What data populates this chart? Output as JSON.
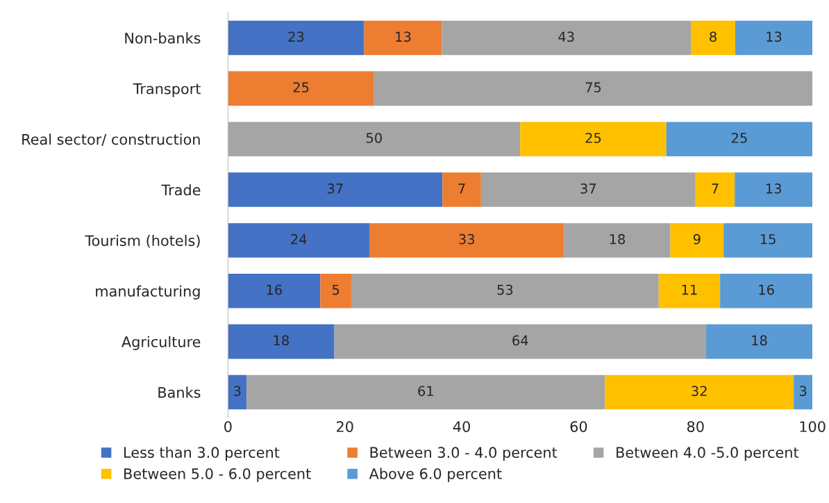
{
  "chart_data": {
    "type": "bar",
    "orientation": "horizontal",
    "stacked": true,
    "grid": false,
    "legend": "bottom",
    "categories": [
      "Non-banks",
      "Transport",
      "Real sector/ construction",
      "Trade",
      "Tourism (hotels)",
      "manufacturing",
      "Agriculture",
      "Banks"
    ],
    "xlim": [
      0,
      100
    ],
    "xticks": [
      0,
      20,
      40,
      60,
      80,
      100
    ],
    "series": [
      {
        "name": "Less than 3.0 percent",
        "color": "#4472c4",
        "values": [
          23.3,
          null,
          null,
          36.7,
          24.2,
          15.8,
          18.2,
          3.2
        ],
        "value_labels": [
          "23",
          null,
          null,
          "37",
          "24",
          "16",
          "18",
          "3"
        ]
      },
      {
        "name": "Between 3.0 - 4.0 percent",
        "color": "#ed7d31",
        "values": [
          13.3,
          25,
          null,
          6.6,
          33.3,
          5.3,
          null,
          null
        ],
        "value_labels": [
          "13",
          "25",
          null,
          "7",
          "33",
          "5",
          null,
          null
        ]
      },
      {
        "name": "Between 4.0 -5.0 percent",
        "color": "#a5a5a5",
        "values": [
          42.6,
          75,
          50,
          36.7,
          18.2,
          52.6,
          63.6,
          61.3
        ],
        "value_labels": [
          "43",
          "75",
          "50",
          "37",
          "18",
          "53",
          "64",
          "61"
        ]
      },
      {
        "name": "Between 5.0 - 6.0 percent",
        "color": "#ffc000",
        "values": [
          7.6,
          null,
          25,
          6.7,
          9.1,
          10.5,
          null,
          32.3
        ],
        "value_labels": [
          "8",
          null,
          "25",
          "7",
          "9",
          "11",
          null,
          "32"
        ]
      },
      {
        "name": "Above 6.0 percent",
        "color": "#5b9bd5",
        "values": [
          13.2,
          null,
          25,
          13.3,
          15.2,
          15.8,
          18.2,
          3.2
        ],
        "value_labels": [
          "13",
          null,
          "25",
          "13",
          "15",
          "16",
          "18",
          "3"
        ]
      }
    ]
  }
}
